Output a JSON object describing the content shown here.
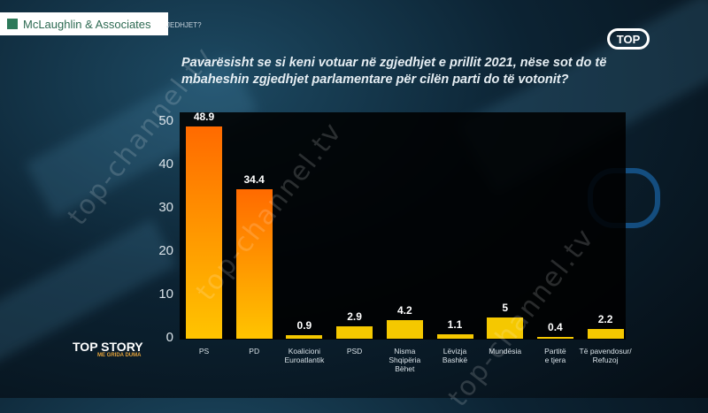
{
  "header": {
    "brand": "McLaughlin & Associates",
    "previous_title_fragment": "JEDHJET?",
    "channel_logo": "TOP"
  },
  "question": "Pavarësisht se si keni votuar në zgjedhjet e prillit 2021, nëse sot do të mbaheshin zgjedhjet parlamentare për cilën parti do të votonit?",
  "watermarks": [
    "top-channel.tv",
    "top-channel.tv",
    "top-channel.tv"
  ],
  "show": {
    "name": "TOP STORY",
    "host": "ME GRIDA DUMA"
  },
  "colors": {
    "bar_top_large": "#ff6a00",
    "bar_bottom_large": "#ffc400",
    "bar_small": "#f5c800",
    "plot_background": "#000000"
  },
  "chart_data": {
    "type": "bar",
    "title": "",
    "xlabel": "",
    "ylabel": "",
    "ylim": [
      0,
      50
    ],
    "yticks": [
      "0",
      "10",
      "20",
      "30",
      "40",
      "50"
    ],
    "grid": false,
    "categories": [
      "PS",
      "PD",
      "Koalicioni\nEuroatlantik",
      "PSD",
      "Nisma\nShqipëria\nBëhet",
      "Lëvizja\nBashkë",
      "Mundësia",
      "Partitë\ne tjera",
      "Të pavendosur/\nRefuzoj"
    ],
    "values": [
      48.9,
      34.4,
      0.9,
      2.9,
      4.2,
      1.1,
      5,
      0.4,
      2.2
    ],
    "value_labels": [
      "48.9",
      "34.4",
      "0.9",
      "2.9",
      "4.2",
      "1.1",
      "5",
      "0.4",
      "2.2"
    ]
  }
}
